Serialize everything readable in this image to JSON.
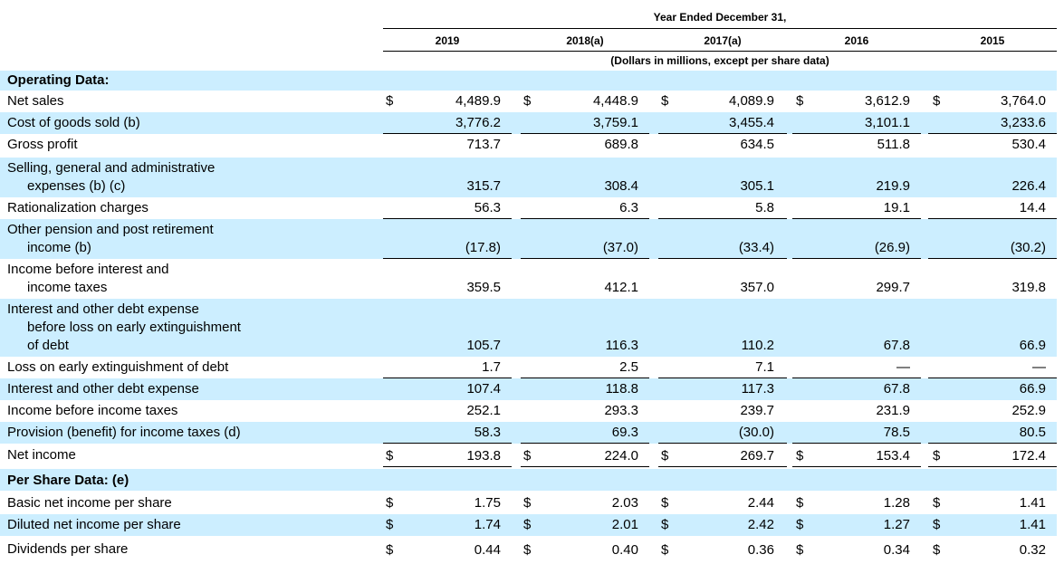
{
  "header": {
    "period": "Year Ended December 31,",
    "years": [
      "2019",
      "2018(a)",
      "2017(a)",
      "2016",
      "2015"
    ],
    "units_note": "(Dollars in millions, except per share data)"
  },
  "sections": {
    "operating": "Operating Data:",
    "per_share": "Per Share Data: (e)"
  },
  "currency_symbol": "$",
  "rows": [
    {
      "label": [
        "Net sales"
      ],
      "values": [
        "4,489.9",
        "4,448.9",
        "4,089.9",
        "3,612.9",
        "3,764.0"
      ],
      "dollar": true
    },
    {
      "label": [
        "Cost of goods sold (b)"
      ],
      "values": [
        "3,776.2",
        "3,759.1",
        "3,455.4",
        "3,101.1",
        "3,233.6"
      ],
      "dollar": false
    },
    {
      "label": [
        "Gross profit"
      ],
      "values": [
        "713.7",
        "689.8",
        "634.5",
        "511.8",
        "530.4"
      ],
      "dollar": false
    },
    {
      "label": [
        "Selling, general and administrative",
        "expenses (b) (c)"
      ],
      "values": [
        "315.7",
        "308.4",
        "305.1",
        "219.9",
        "226.4"
      ],
      "dollar": false
    },
    {
      "label": [
        "Rationalization charges"
      ],
      "values": [
        "56.3",
        "6.3",
        "5.8",
        "19.1",
        "14.4"
      ],
      "dollar": false
    },
    {
      "label": [
        "Other pension and post retirement",
        "income (b)"
      ],
      "values": [
        "(17.8)",
        "(37.0)",
        "(33.4)",
        "(26.9)",
        "(30.2)"
      ],
      "dollar": false
    },
    {
      "label": [
        "Income before interest and",
        "income taxes"
      ],
      "values": [
        "359.5",
        "412.1",
        "357.0",
        "299.7",
        "319.8"
      ],
      "dollar": false
    },
    {
      "label": [
        "Interest and other debt expense",
        "before loss on early extinguishment",
        "of debt"
      ],
      "values": [
        "105.7",
        "116.3",
        "110.2",
        "67.8",
        "66.9"
      ],
      "dollar": false
    },
    {
      "label": [
        "Loss on early extinguishment of debt"
      ],
      "values": [
        "1.7",
        "2.5",
        "7.1",
        "—",
        "—"
      ],
      "dollar": false
    },
    {
      "label": [
        "Interest and other debt expense"
      ],
      "values": [
        "107.4",
        "118.8",
        "117.3",
        "67.8",
        "66.9"
      ],
      "dollar": false
    },
    {
      "label": [
        "Income before income taxes"
      ],
      "values": [
        "252.1",
        "293.3",
        "239.7",
        "231.9",
        "252.9"
      ],
      "dollar": false
    },
    {
      "label": [
        "Provision (benefit) for income taxes (d)"
      ],
      "values": [
        "58.3",
        "69.3",
        "(30.0)",
        "78.5",
        "80.5"
      ],
      "dollar": false
    },
    {
      "label": [
        "Net income"
      ],
      "values": [
        "193.8",
        "224.0",
        "269.7",
        "153.4",
        "172.4"
      ],
      "dollar": true
    },
    {
      "label": [
        "Basic net income per share"
      ],
      "values": [
        "1.75",
        "2.03",
        "2.44",
        "1.28",
        "1.41"
      ],
      "dollar": true
    },
    {
      "label": [
        "Diluted net income per share"
      ],
      "values": [
        "1.74",
        "2.01",
        "2.42",
        "1.27",
        "1.41"
      ],
      "dollar": true
    },
    {
      "label": [
        "Dividends per share"
      ],
      "values": [
        "0.44",
        "0.40",
        "0.36",
        "0.34",
        "0.32"
      ],
      "dollar": true
    }
  ]
}
